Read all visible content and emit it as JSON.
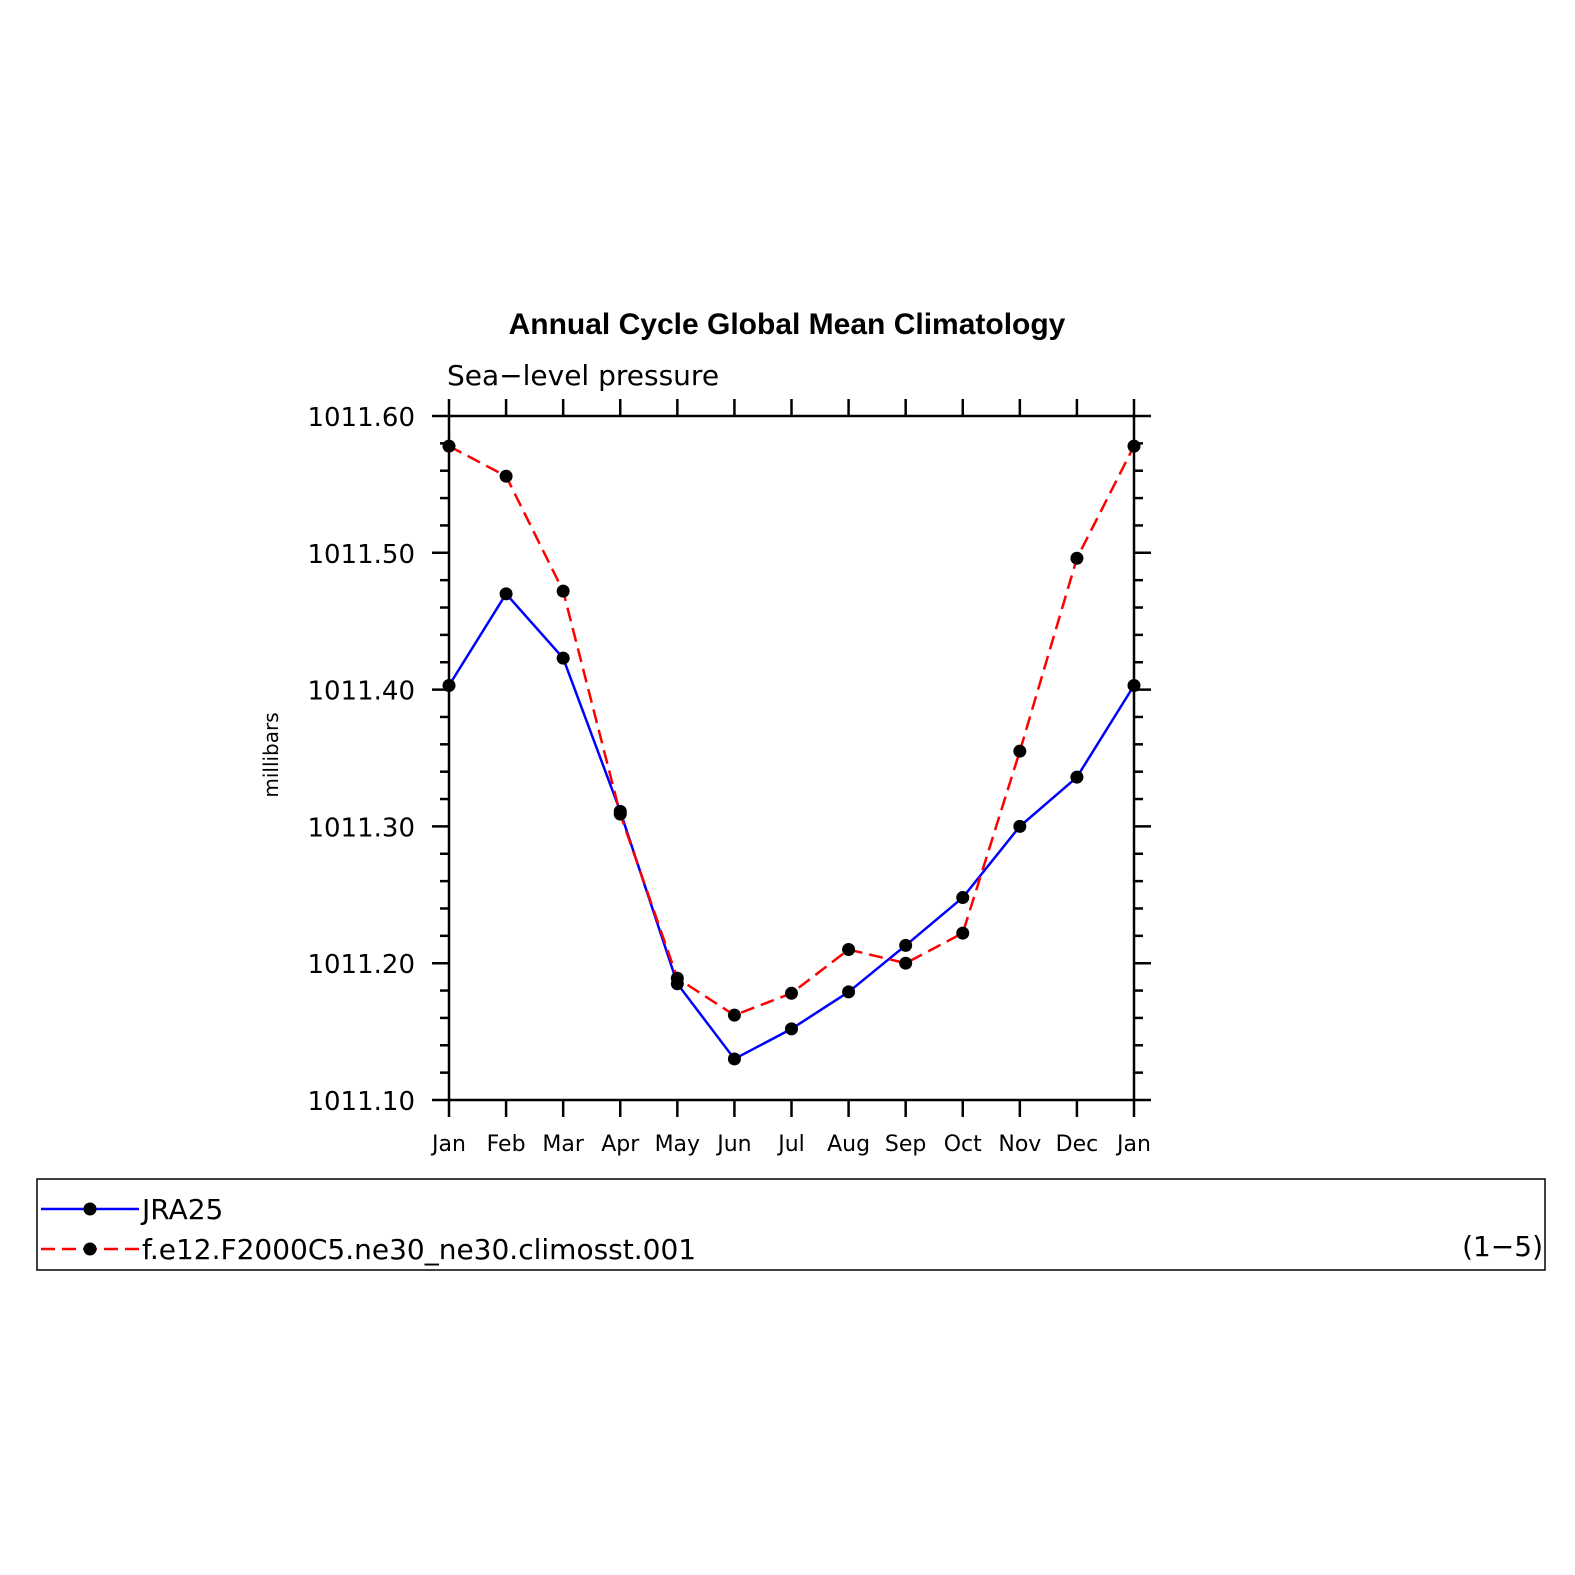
{
  "chart_data": {
    "type": "line",
    "title": "Annual Cycle Global Mean Climatology",
    "subtitle": "Sea−level pressure",
    "ylabel": "millibars",
    "xlabel": "",
    "categories": [
      "Jan",
      "Feb",
      "Mar",
      "Apr",
      "May",
      "Jun",
      "Jul",
      "Aug",
      "Sep",
      "Oct",
      "Nov",
      "Dec",
      "Jan"
    ],
    "ylim": [
      1011.1,
      1011.6
    ],
    "yticks": [
      "1011.10",
      "1011.20",
      "1011.30",
      "1011.40",
      "1011.50",
      "1011.60"
    ],
    "grid": false,
    "series": [
      {
        "name": "JRA25",
        "color": "#0000ff",
        "dash": "solid",
        "marker": "filled-circle",
        "values": [
          1011.403,
          1011.47,
          1011.423,
          1011.311,
          1011.185,
          1011.13,
          1011.152,
          1011.179,
          1011.213,
          1011.248,
          1011.3,
          1011.336,
          1011.403
        ]
      },
      {
        "name": "f.e12.F2000C5.ne30_ne30.climosst.001",
        "color": "#ff0000",
        "dash": "dashed",
        "marker": "filled-circle",
        "values": [
          1011.578,
          1011.556,
          1011.472,
          1011.309,
          1011.189,
          1011.162,
          1011.178,
          1011.21,
          1011.2,
          1011.222,
          1011.355,
          1011.496,
          1011.578
        ]
      }
    ],
    "legend": {
      "placement": "bottom",
      "note": "(1−5)"
    }
  }
}
